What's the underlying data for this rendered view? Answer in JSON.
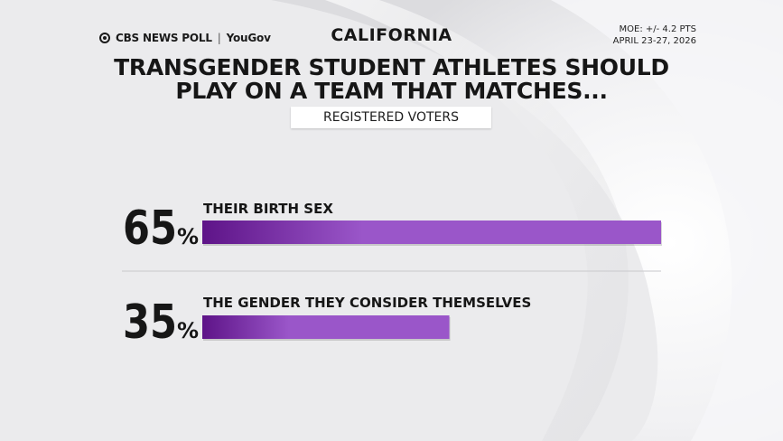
{
  "header": {
    "brand_left": "CBS NEWS POLL",
    "brand_right": "YouGov",
    "state": "CALIFORNIA",
    "moe": "MOE: +/- 4.2 PTS",
    "dates": "APRIL 23-27, 2026"
  },
  "title_line1": "TRANSGENDER STUDENT ATHLETES SHOULD",
  "title_line2": "PLAY ON A TEAM THAT MATCHES...",
  "subtitle_pill": "REGISTERED VOTERS",
  "colors": {
    "bar_dark": "#5e1488",
    "bar_light": "#9a56c9",
    "text": "#161616"
  },
  "chart_data": {
    "type": "bar",
    "orientation": "horizontal",
    "categories": [
      "THEIR BIRTH SEX",
      "THE GENDER THEY CONSIDER THEMSELVES"
    ],
    "values": [
      65,
      35
    ],
    "unit": "%",
    "xlim": [
      0,
      65
    ],
    "grid": false,
    "legend": "none"
  }
}
